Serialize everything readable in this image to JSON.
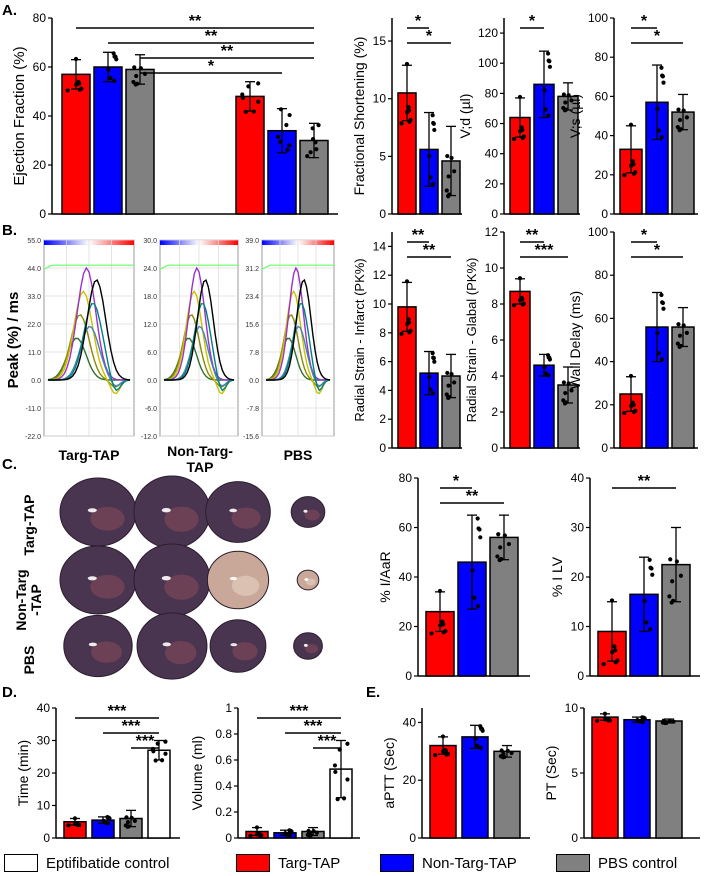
{
  "panel_letters": [
    "A.",
    "B.",
    "C.",
    "D.",
    "E."
  ],
  "colors": {
    "red": "#ff0000",
    "blue": "#0000ff",
    "gray": "#808080",
    "white": "#ffffff"
  },
  "legend": [
    {
      "label": "Eptifibatide control",
      "color": "#ffffff"
    },
    {
      "label": "Targ-TAP",
      "color": "#ff0000"
    },
    {
      "label": "Non-Targ-TAP",
      "color": "#0000ff"
    },
    {
      "label": "PBS control",
      "color": "#808080"
    }
  ],
  "heart_labels": [
    "Targ-TAP",
    "Non-Targ\n-TAP",
    "PBS"
  ],
  "chart_data": [
    {
      "id": "ef",
      "type": "bar",
      "ylabel": "Ejection Fraction (%)",
      "ylim": [
        0,
        80
      ],
      "yticks": [
        0,
        20,
        40,
        60,
        80
      ],
      "groups": [
        [
          57,
          60,
          59
        ],
        [
          48,
          34,
          30
        ]
      ],
      "errors": [
        [
          6,
          6,
          6
        ],
        [
          6,
          9,
          7
        ]
      ],
      "significance": [
        {
          "label": "**",
          "bars": [
            1,
            5
          ]
        },
        {
          "label": "**",
          "bars": [
            2,
            5
          ]
        },
        {
          "label": "**",
          "bars": [
            3,
            5
          ]
        },
        {
          "label": "*",
          "bars": [
            3,
            4
          ]
        }
      ]
    },
    {
      "id": "fs",
      "type": "bar",
      "ylabel": "Fractional Shortening (%)",
      "ylim": [
        0,
        17
      ],
      "yticks": [
        0,
        5,
        10,
        15
      ],
      "groups": [
        [
          10.5,
          5.6,
          4.6
        ]
      ],
      "errors": [
        [
          2.4,
          3.2,
          3.0
        ]
      ],
      "significance": [
        {
          "label": "*",
          "bars": [
            0,
            1
          ]
        },
        {
          "label": "*",
          "bars": [
            0,
            2
          ]
        }
      ]
    },
    {
      "id": "vd",
      "type": "bar",
      "ylabel": "V;d (µl)",
      "ylim": [
        0,
        130
      ],
      "yticks": [
        0,
        20,
        40,
        60,
        80,
        100,
        120
      ],
      "groups": [
        [
          64,
          86,
          78
        ]
      ],
      "errors": [
        [
          13,
          22,
          9
        ]
      ],
      "significance": [
        {
          "label": "*",
          "bars": [
            0,
            1
          ]
        }
      ]
    },
    {
      "id": "vs",
      "type": "bar",
      "ylabel": "V;s (µl)",
      "ylim": [
        0,
        100
      ],
      "yticks": [
        0,
        20,
        40,
        60,
        80,
        100
      ],
      "groups": [
        [
          33,
          57,
          52
        ]
      ],
      "errors": [
        [
          12,
          19,
          9
        ]
      ],
      "significance": [
        {
          "label": "*",
          "bars": [
            0,
            1
          ]
        },
        {
          "label": "*",
          "bars": [
            0,
            2
          ]
        }
      ]
    },
    {
      "id": "rsi",
      "type": "bar",
      "ylabel": "Radial Strain - Infarct (PK%)",
      "ylim": [
        0,
        15
      ],
      "yticks": [
        0,
        2,
        4,
        6,
        8,
        10,
        12,
        14
      ],
      "groups": [
        [
          9.8,
          5.2,
          5.0
        ]
      ],
      "errors": [
        [
          1.7,
          1.5,
          1.5
        ]
      ],
      "significance": [
        {
          "label": "**",
          "bars": [
            0,
            1
          ]
        },
        {
          "label": "**",
          "bars": [
            0,
            2
          ]
        }
      ]
    },
    {
      "id": "rsg",
      "type": "bar",
      "ylabel": "Radial Strain - Glabal (PK%)",
      "ylim": [
        0,
        12
      ],
      "yticks": [
        0,
        2,
        4,
        6,
        8,
        10,
        12
      ],
      "groups": [
        [
          8.7,
          4.6,
          3.5
        ]
      ],
      "errors": [
        [
          0.7,
          0.6,
          1.0
        ]
      ],
      "significance": [
        {
          "label": "**",
          "bars": [
            0,
            1
          ]
        },
        {
          "label": "***",
          "bars": [
            0,
            2
          ]
        }
      ]
    },
    {
      "id": "wd",
      "type": "bar",
      "ylabel": "Wall Delay (ms)",
      "ylim": [
        0,
        100
      ],
      "yticks": [
        0,
        20,
        40,
        60,
        80,
        100
      ],
      "groups": [
        [
          25,
          56,
          56
        ]
      ],
      "errors": [
        [
          8,
          16,
          9
        ]
      ],
      "significance": [
        {
          "label": "*",
          "bars": [
            0,
            1
          ]
        },
        {
          "label": "*",
          "bars": [
            0,
            2
          ]
        }
      ]
    },
    {
      "id": "iaar",
      "type": "bar",
      "ylabel": "% I/AaR",
      "ylim": [
        0,
        80
      ],
      "yticks": [
        0,
        20,
        40,
        60,
        80
      ],
      "groups": [
        [
          26,
          46,
          56
        ]
      ],
      "errors": [
        [
          8,
          19,
          9
        ]
      ],
      "significance": [
        {
          "label": "*",
          "bars": [
            0,
            1
          ]
        },
        {
          "label": "**",
          "bars": [
            0,
            2
          ]
        }
      ]
    },
    {
      "id": "ilv",
      "type": "bar",
      "ylabel": "% I LV",
      "ylim": [
        0,
        40
      ],
      "yticks": [
        0,
        10,
        20,
        30,
        40
      ],
      "groups": [
        [
          9,
          16.5,
          22.5
        ]
      ],
      "errors": [
        [
          6,
          7.5,
          7.5
        ]
      ],
      "significance": [
        {
          "label": "**",
          "bars": [
            0,
            2
          ]
        }
      ]
    },
    {
      "id": "time",
      "type": "bar",
      "ylabel": "Time (min)",
      "ylim": [
        0,
        40
      ],
      "yticks": [
        0,
        10,
        20,
        30,
        40
      ],
      "groups": [
        [
          5,
          5.5,
          6,
          27
        ]
      ],
      "errors": [
        [
          1,
          1,
          2.5,
          3
        ]
      ],
      "colors": [
        "#ff0000",
        "#0000ff",
        "#808080",
        "#ffffff"
      ],
      "significance": [
        {
          "label": "***",
          "bars": [
            0,
            3
          ]
        },
        {
          "label": "***",
          "bars": [
            1,
            3
          ]
        },
        {
          "label": "***",
          "bars": [
            2,
            3
          ]
        }
      ]
    },
    {
      "id": "vol",
      "type": "bar",
      "ylabel": "Volume (ml)",
      "ylim": [
        0,
        1.0
      ],
      "yticks": [
        0.0,
        0.2,
        0.4,
        0.6,
        0.8,
        1.0
      ],
      "groups": [
        [
          0.05,
          0.04,
          0.05,
          0.53
        ]
      ],
      "errors": [
        [
          0.03,
          0.02,
          0.03,
          0.22
        ]
      ],
      "colors": [
        "#ff0000",
        "#0000ff",
        "#808080",
        "#ffffff"
      ],
      "significance": [
        {
          "label": "***",
          "bars": [
            0,
            3
          ]
        },
        {
          "label": "***",
          "bars": [
            1,
            3
          ]
        },
        {
          "label": "***",
          "bars": [
            2,
            3
          ]
        }
      ]
    },
    {
      "id": "aptt",
      "type": "bar",
      "ylabel": "aPTT (Sec)",
      "ylim": [
        0,
        45
      ],
      "yticks": [
        0,
        20,
        40
      ],
      "groups": [
        [
          32,
          35,
          30
        ]
      ],
      "errors": [
        [
          3,
          4,
          2
        ]
      ],
      "significance": []
    },
    {
      "id": "pt",
      "type": "bar",
      "ylabel": "PT (Sec)",
      "ylim": [
        0,
        10
      ],
      "yticks": [
        0,
        5,
        10
      ],
      "groups": [
        [
          9.3,
          9.1,
          9.0
        ]
      ],
      "errors": [
        [
          0.25,
          0.2,
          0.15
        ]
      ],
      "significance": []
    },
    {
      "id": "peak",
      "type": "line",
      "ylabel": "Peak (%) / ms",
      "sub": [
        {
          "label": "Targ-TAP",
          "ticks": [
            "55.0",
            "44.0",
            "33.0",
            "22.0",
            "11.0",
            "0.0",
            "-11.0",
            "-22.0"
          ],
          "ymax": 55,
          "ymin": -22
        },
        {
          "label": "Non-Targ-TAP",
          "ticks": [
            "30.0",
            "24.0",
            "18.0",
            "12.0",
            "6.0",
            "0.0",
            "-6.0",
            "-12.0"
          ],
          "ymax": 30,
          "ymin": -12
        },
        {
          "label": "PBS",
          "ticks": [
            "39.0",
            "31.2",
            "23.4",
            "15.6",
            "7.8",
            "0.0",
            "-7.8",
            "-15.6"
          ],
          "ymax": 39,
          "ymin": -15.6
        }
      ]
    }
  ]
}
